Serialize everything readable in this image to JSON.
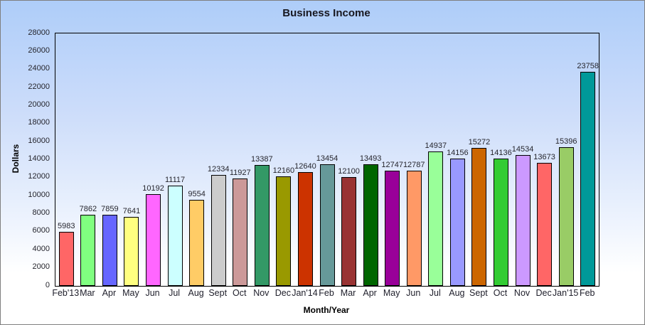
{
  "chart_data": {
    "type": "bar",
    "title": "Business Income",
    "xlabel": "Month/Year",
    "ylabel": "Dollars",
    "ylim": [
      0,
      28000
    ],
    "ytick_step": 2000,
    "grid": false,
    "legend": "none",
    "background_gradient": [
      "#AECDF9",
      "#FFFFFF"
    ],
    "plot_border_color": "#000000",
    "bar_border_color": "#000000",
    "categories": [
      "Feb'13",
      "Mar",
      "Apr",
      "May",
      "Jun",
      "Jul",
      "Aug",
      "Sept",
      "Oct",
      "Nov",
      "Dec",
      "Jan'14",
      "Feb",
      "Mar",
      "Apr",
      "May",
      "Jun",
      "Jul",
      "Aug",
      "Sept",
      "Oct",
      "Nov",
      "Dec",
      "Jan'15",
      "Feb"
    ],
    "values": [
      5983,
      7862,
      7859,
      7641,
      10192,
      11117,
      9554,
      12334,
      11927,
      13387,
      12160,
      12640,
      13454,
      12100,
      13493,
      12747,
      12787,
      14937,
      14156,
      15272,
      14136,
      14534,
      13673,
      15396,
      23758
    ],
    "bar_colors": [
      "#FF6666",
      "#80FF80",
      "#6666FF",
      "#FFFF80",
      "#FF66FF",
      "#CCFFFF",
      "#FFCC66",
      "#CCCCCC",
      "#CC9999",
      "#339966",
      "#999900",
      "#CC3300",
      "#669999",
      "#993333",
      "#006600",
      "#990099",
      "#FF9966",
      "#99FF99",
      "#9999FF",
      "#CC6600",
      "#33CC33",
      "#CC99FF",
      "#FF6666",
      "#99CC66",
      "#009999"
    ]
  }
}
